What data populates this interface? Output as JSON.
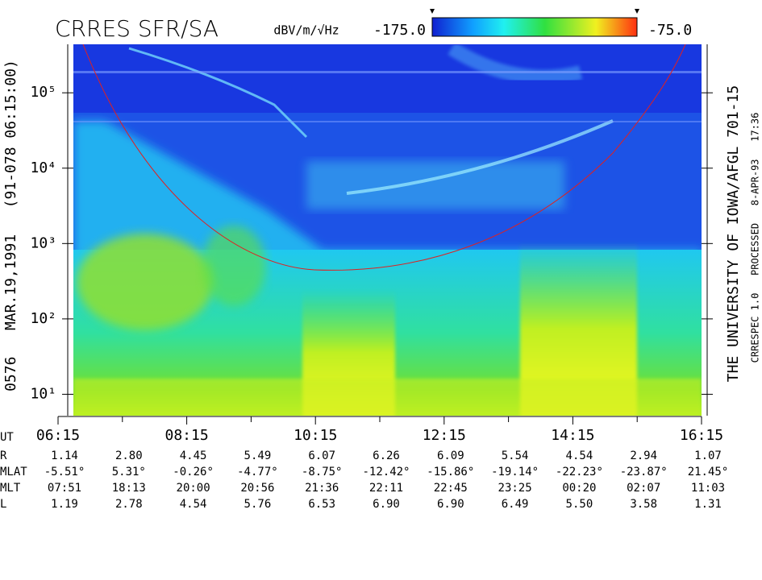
{
  "chart_data": {
    "type": "spectrogram",
    "title": "CRRES SFR/SA",
    "left_label": "0576   MAR.19,1991   (91-078 06:15:00)",
    "right_label": "THE UNIVERSITY OF IOWA/AFGL 701-15",
    "right_sublabel": "CRRESPEC 1.0   PROCESSED   8-APR-93   17:36",
    "colorbar_label": "dBV/m/√Hz",
    "zlim": [
      -175,
      -75
    ],
    "zticks": [
      {
        "value": -175,
        "label": "-175.0"
      },
      {
        "value": -75,
        "label": "-75.0"
      }
    ],
    "log_y": true,
    "ylim": [
      5.2,
      440000
    ],
    "yticks": [
      {
        "value": 10,
        "label": "10¹"
      },
      {
        "value": 100,
        "label": "10²"
      },
      {
        "value": 1000,
        "label": "10³"
      },
      {
        "value": 10000,
        "label": "10⁴"
      },
      {
        "value": 100000,
        "label": "10⁵"
      }
    ],
    "xlim": [
      6.25,
      16.25
    ],
    "xticks": [
      {
        "value": 6.25,
        "label": "06:15"
      },
      {
        "value": 8.25,
        "label": "08:15"
      },
      {
        "value": 10.25,
        "label": "10:15"
      },
      {
        "value": 12.25,
        "label": "12:15"
      },
      {
        "value": 14.25,
        "label": "14:15"
      },
      {
        "value": 16.25,
        "label": "16:15"
      }
    ],
    "xminorticks": [
      7.25,
      9.25,
      11.25,
      13.25,
      15.25
    ],
    "x_label": "UT",
    "ephemeris": [
      {
        "label": "R",
        "values": [
          "1.14",
          "2.80",
          "4.45",
          "5.49",
          "6.07",
          "6.26",
          "6.09",
          "5.54",
          "4.54",
          "2.94",
          "1.07"
        ]
      },
      {
        "label": "MLAT",
        "values": [
          "-5.51°",
          "5.31°",
          "-0.26°",
          "-4.77°",
          "-8.75°",
          "-12.42°",
          "-15.86°",
          "-19.14°",
          "-22.23°",
          "-23.87°",
          "21.45°"
        ]
      },
      {
        "label": "MLT",
        "values": [
          "07:51",
          "18:13",
          "20:00",
          "20:56",
          "21:36",
          "22:11",
          "22:45",
          "23:25",
          "00:20",
          "02:07",
          "11:03"
        ]
      },
      {
        "label": "L",
        "values": [
          "1.19",
          "2.78",
          "4.54",
          "5.76",
          "6.53",
          "6.90",
          "6.90",
          "6.49",
          "5.50",
          "3.58",
          "1.31"
        ]
      }
    ]
  }
}
